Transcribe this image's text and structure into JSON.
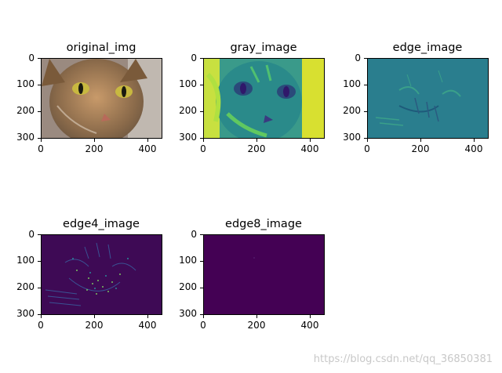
{
  "panels": [
    {
      "title": "original_img",
      "yticks": [
        "0",
        "100",
        "200",
        "300"
      ],
      "xticks": [
        "0",
        "200",
        "400"
      ]
    },
    {
      "title": "gray_image",
      "yticks": [
        "0",
        "100",
        "200",
        "300"
      ],
      "xticks": [
        "0",
        "200",
        "400"
      ]
    },
    {
      "title": "edge_image",
      "yticks": [
        "0",
        "100",
        "200",
        "300"
      ],
      "xticks": [
        "0",
        "200",
        "400"
      ]
    },
    {
      "title": "edge4_image",
      "yticks": [
        "0",
        "100",
        "200",
        "300"
      ],
      "xticks": [
        "0",
        "200",
        "400"
      ]
    },
    {
      "title": "edge8_image",
      "yticks": [
        "0",
        "100",
        "200",
        "300"
      ],
      "xticks": [
        "0",
        "200",
        "400"
      ]
    }
  ],
  "watermark": "https://blog.csdn.net/qq_36850381",
  "colors": {
    "viridis_dark": "#440154",
    "viridis_teal": "#2a788e",
    "viridis_green": "#22a884",
    "viridis_yellow": "#fde725"
  }
}
